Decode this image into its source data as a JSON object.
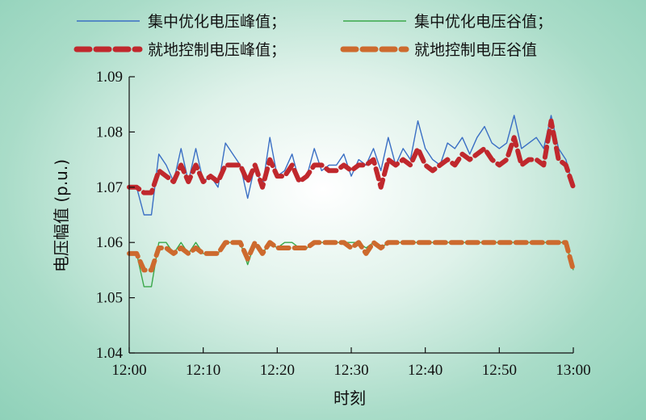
{
  "chart_data": {
    "type": "line",
    "xlabel": "时刻",
    "ylabel": "电压幅值 (p.u.)",
    "x_ticks": [
      "12:00",
      "12:10",
      "12:20",
      "12:30",
      "12:40",
      "12:50",
      "13:00"
    ],
    "y_ticks": [
      "1.04",
      "1.05",
      "1.06",
      "1.07",
      "1.08",
      "1.09"
    ],
    "xlim_minutes_after_12_00": [
      0,
      60
    ],
    "ylim": [
      1.04,
      1.09
    ],
    "grid": false,
    "legend_position": "top",
    "series": [
      {
        "name": "集中优化电压峰值；",
        "color": "#3a6fc4",
        "style": "solid-thin",
        "values": [
          [
            0,
            1.07
          ],
          [
            1,
            1.07
          ],
          [
            2,
            1.065
          ],
          [
            3,
            1.065
          ],
          [
            4,
            1.076
          ],
          [
            5,
            1.074
          ],
          [
            6,
            1.071
          ],
          [
            7,
            1.077
          ],
          [
            8,
            1.071
          ],
          [
            9,
            1.077
          ],
          [
            10,
            1.071
          ],
          [
            11,
            1.072
          ],
          [
            12,
            1.07
          ],
          [
            13,
            1.078
          ],
          [
            14,
            1.076
          ],
          [
            15,
            1.074
          ],
          [
            16,
            1.068
          ],
          [
            17,
            1.074
          ],
          [
            18,
            1.07
          ],
          [
            19,
            1.079
          ],
          [
            20,
            1.072
          ],
          [
            21,
            1.073
          ],
          [
            22,
            1.076
          ],
          [
            23,
            1.071
          ],
          [
            24,
            1.072
          ],
          [
            25,
            1.077
          ],
          [
            26,
            1.073
          ],
          [
            27,
            1.074
          ],
          [
            28,
            1.074
          ],
          [
            29,
            1.076
          ],
          [
            30,
            1.072
          ],
          [
            31,
            1.075
          ],
          [
            32,
            1.074
          ],
          [
            33,
            1.077
          ],
          [
            34,
            1.073
          ],
          [
            35,
            1.079
          ],
          [
            36,
            1.074
          ],
          [
            37,
            1.077
          ],
          [
            38,
            1.075
          ],
          [
            39,
            1.082
          ],
          [
            40,
            1.077
          ],
          [
            41,
            1.075
          ],
          [
            42,
            1.074
          ],
          [
            43,
            1.078
          ],
          [
            44,
            1.077
          ],
          [
            45,
            1.079
          ],
          [
            46,
            1.076
          ],
          [
            47,
            1.079
          ],
          [
            48,
            1.081
          ],
          [
            49,
            1.078
          ],
          [
            50,
            1.077
          ],
          [
            51,
            1.078
          ],
          [
            52,
            1.083
          ],
          [
            53,
            1.077
          ],
          [
            54,
            1.078
          ],
          [
            55,
            1.079
          ],
          [
            56,
            1.077
          ],
          [
            57,
            1.083
          ],
          [
            58,
            1.077
          ],
          [
            59,
            1.075
          ],
          [
            60,
            1.07
          ]
        ]
      },
      {
        "name": "集中优化电压谷值；",
        "color": "#3aa84a",
        "style": "solid-thin",
        "values": [
          [
            0,
            1.058
          ],
          [
            1,
            1.058
          ],
          [
            2,
            1.052
          ],
          [
            3,
            1.052
          ],
          [
            4,
            1.06
          ],
          [
            5,
            1.06
          ],
          [
            6,
            1.058
          ],
          [
            7,
            1.06
          ],
          [
            8,
            1.058
          ],
          [
            9,
            1.06
          ],
          [
            10,
            1.058
          ],
          [
            11,
            1.058
          ],
          [
            12,
            1.058
          ],
          [
            13,
            1.06
          ],
          [
            14,
            1.06
          ],
          [
            15,
            1.06
          ],
          [
            16,
            1.056
          ],
          [
            17,
            1.06
          ],
          [
            18,
            1.058
          ],
          [
            19,
            1.06
          ],
          [
            20,
            1.059
          ],
          [
            21,
            1.06
          ],
          [
            22,
            1.06
          ],
          [
            23,
            1.059
          ],
          [
            24,
            1.059
          ],
          [
            25,
            1.06
          ],
          [
            26,
            1.06
          ],
          [
            27,
            1.06
          ],
          [
            28,
            1.06
          ],
          [
            29,
            1.06
          ],
          [
            30,
            1.06
          ],
          [
            31,
            1.06
          ],
          [
            32,
            1.059
          ],
          [
            33,
            1.06
          ],
          [
            34,
            1.059
          ],
          [
            35,
            1.06
          ],
          [
            36,
            1.06
          ],
          [
            37,
            1.06
          ],
          [
            38,
            1.06
          ],
          [
            39,
            1.06
          ],
          [
            40,
            1.06
          ],
          [
            41,
            1.06
          ],
          [
            42,
            1.06
          ],
          [
            43,
            1.06
          ],
          [
            44,
            1.06
          ],
          [
            45,
            1.06
          ],
          [
            46,
            1.06
          ],
          [
            47,
            1.06
          ],
          [
            48,
            1.06
          ],
          [
            49,
            1.06
          ],
          [
            50,
            1.06
          ],
          [
            51,
            1.06
          ],
          [
            52,
            1.06
          ],
          [
            53,
            1.06
          ],
          [
            54,
            1.06
          ],
          [
            55,
            1.06
          ],
          [
            56,
            1.06
          ],
          [
            57,
            1.06
          ],
          [
            58,
            1.06
          ],
          [
            59,
            1.06
          ],
          [
            60,
            1.055
          ]
        ]
      },
      {
        "name": "就地控制电压峰值；",
        "color": "#c0282d",
        "style": "dashed-thick",
        "values": [
          [
            0,
            1.07
          ],
          [
            1,
            1.07
          ],
          [
            2,
            1.069
          ],
          [
            3,
            1.069
          ],
          [
            4,
            1.073
          ],
          [
            5,
            1.072
          ],
          [
            6,
            1.071
          ],
          [
            7,
            1.074
          ],
          [
            8,
            1.071
          ],
          [
            9,
            1.074
          ],
          [
            10,
            1.071
          ],
          [
            11,
            1.072
          ],
          [
            12,
            1.071
          ],
          [
            13,
            1.074
          ],
          [
            14,
            1.074
          ],
          [
            15,
            1.074
          ],
          [
            16,
            1.071
          ],
          [
            17,
            1.074
          ],
          [
            18,
            1.07
          ],
          [
            19,
            1.075
          ],
          [
            20,
            1.072
          ],
          [
            21,
            1.072
          ],
          [
            22,
            1.074
          ],
          [
            23,
            1.071
          ],
          [
            24,
            1.072
          ],
          [
            25,
            1.074
          ],
          [
            26,
            1.074
          ],
          [
            27,
            1.073
          ],
          [
            28,
            1.073
          ],
          [
            29,
            1.074
          ],
          [
            30,
            1.073
          ],
          [
            31,
            1.074
          ],
          [
            32,
            1.074
          ],
          [
            33,
            1.075
          ],
          [
            34,
            1.07
          ],
          [
            35,
            1.075
          ],
          [
            36,
            1.074
          ],
          [
            37,
            1.075
          ],
          [
            38,
            1.074
          ],
          [
            39,
            1.077
          ],
          [
            40,
            1.074
          ],
          [
            41,
            1.073
          ],
          [
            42,
            1.074
          ],
          [
            43,
            1.075
          ],
          [
            44,
            1.074
          ],
          [
            45,
            1.076
          ],
          [
            46,
            1.075
          ],
          [
            47,
            1.076
          ],
          [
            48,
            1.077
          ],
          [
            49,
            1.075
          ],
          [
            50,
            1.074
          ],
          [
            51,
            1.075
          ],
          [
            52,
            1.079
          ],
          [
            53,
            1.074
          ],
          [
            54,
            1.075
          ],
          [
            55,
            1.075
          ],
          [
            56,
            1.074
          ],
          [
            57,
            1.082
          ],
          [
            58,
            1.075
          ],
          [
            59,
            1.074
          ],
          [
            60,
            1.07
          ]
        ]
      },
      {
        "name": "就地控制电压谷值",
        "color": "#cd6a2e",
        "style": "dashed-thick",
        "values": [
          [
            0,
            1.058
          ],
          [
            1,
            1.058
          ],
          [
            2,
            1.055
          ],
          [
            3,
            1.055
          ],
          [
            4,
            1.059
          ],
          [
            5,
            1.059
          ],
          [
            6,
            1.058
          ],
          [
            7,
            1.059
          ],
          [
            8,
            1.058
          ],
          [
            9,
            1.059
          ],
          [
            10,
            1.058
          ],
          [
            11,
            1.058
          ],
          [
            12,
            1.058
          ],
          [
            13,
            1.06
          ],
          [
            14,
            1.06
          ],
          [
            15,
            1.06
          ],
          [
            16,
            1.057
          ],
          [
            17,
            1.06
          ],
          [
            18,
            1.058
          ],
          [
            19,
            1.06
          ],
          [
            20,
            1.059
          ],
          [
            21,
            1.059
          ],
          [
            22,
            1.059
          ],
          [
            23,
            1.059
          ],
          [
            24,
            1.059
          ],
          [
            25,
            1.06
          ],
          [
            26,
            1.06
          ],
          [
            27,
            1.06
          ],
          [
            28,
            1.06
          ],
          [
            29,
            1.06
          ],
          [
            30,
            1.059
          ],
          [
            31,
            1.06
          ],
          [
            32,
            1.058
          ],
          [
            33,
            1.06
          ],
          [
            34,
            1.059
          ],
          [
            35,
            1.06
          ],
          [
            36,
            1.06
          ],
          [
            37,
            1.06
          ],
          [
            38,
            1.06
          ],
          [
            39,
            1.06
          ],
          [
            40,
            1.06
          ],
          [
            41,
            1.06
          ],
          [
            42,
            1.06
          ],
          [
            43,
            1.06
          ],
          [
            44,
            1.06
          ],
          [
            45,
            1.06
          ],
          [
            46,
            1.06
          ],
          [
            47,
            1.06
          ],
          [
            48,
            1.06
          ],
          [
            49,
            1.06
          ],
          [
            50,
            1.06
          ],
          [
            51,
            1.06
          ],
          [
            52,
            1.06
          ],
          [
            53,
            1.06
          ],
          [
            54,
            1.06
          ],
          [
            55,
            1.06
          ],
          [
            56,
            1.06
          ],
          [
            57,
            1.06
          ],
          [
            58,
            1.06
          ],
          [
            59,
            1.06
          ],
          [
            60,
            1.055
          ]
        ]
      }
    ]
  }
}
